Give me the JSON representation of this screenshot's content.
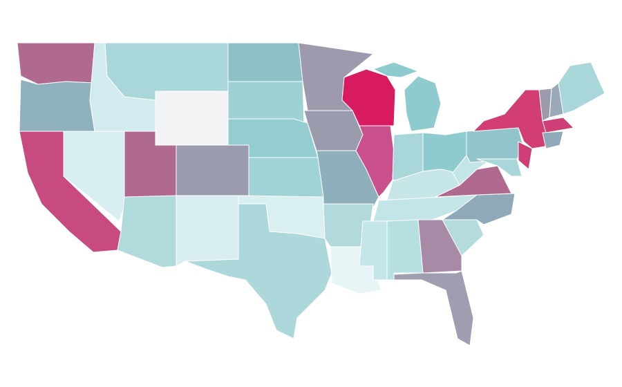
{
  "map": {
    "background": "#ffffff",
    "border_color": "#ffffff",
    "regions": [
      {
        "color": "#b06a90"
      },
      {
        "color": "#8fb0bd"
      },
      {
        "color": "#c84b80"
      },
      {
        "color": "#d8eef0"
      },
      {
        "color": "#d2ebee"
      },
      {
        "color": "#a8d6d9"
      },
      {
        "color": "#f2f3f4"
      },
      {
        "color": "#b06a90"
      },
      {
        "color": "#9a9bad"
      },
      {
        "color": "#b1dadd"
      },
      {
        "color": "#d8eef0"
      },
      {
        "color": "#8bc0c4"
      },
      {
        "color": "#9dd1d4"
      },
      {
        "color": "#94cdd0"
      },
      {
        "color": "#9fd3d5"
      },
      {
        "color": "#daeff0"
      },
      {
        "color": "#acd8db"
      },
      {
        "color": "#9e9aae"
      },
      {
        "color": "#9a9cae"
      },
      {
        "color": "#8fafbd"
      },
      {
        "color": "#b2dadd"
      },
      {
        "color": "#e8f5f6"
      },
      {
        "color": "#d81b60"
      },
      {
        "color": "#c9508a"
      },
      {
        "color": "#8ecbcf"
      },
      {
        "color": "#8ecbcf"
      },
      {
        "color": "#a8d6d9"
      },
      {
        "color": "#8ecbcf"
      },
      {
        "color": "#c6e6e8"
      },
      {
        "color": "#c4e5e8"
      },
      {
        "color": "#c4e6e8"
      },
      {
        "color": "#b6dfe1"
      },
      {
        "color": "#a78aa6"
      },
      {
        "color": "#9f9db0"
      },
      {
        "color": "#b4dcdf"
      },
      {
        "color": "#8fa9b8"
      },
      {
        "color": "#b06a90"
      },
      {
        "color": "#c4e5e8"
      },
      {
        "color": "#92c5cb"
      },
      {
        "color": "#d23e74"
      },
      {
        "color": "#cd3f76"
      },
      {
        "color": "#a8d6d9"
      },
      {
        "color": "#9e9aae"
      },
      {
        "color": "#9aaab8"
      },
      {
        "color": "#a8d6d9"
      },
      {
        "color": "#cd3f76"
      },
      {
        "color": "#8fa9b8"
      }
    ]
  }
}
